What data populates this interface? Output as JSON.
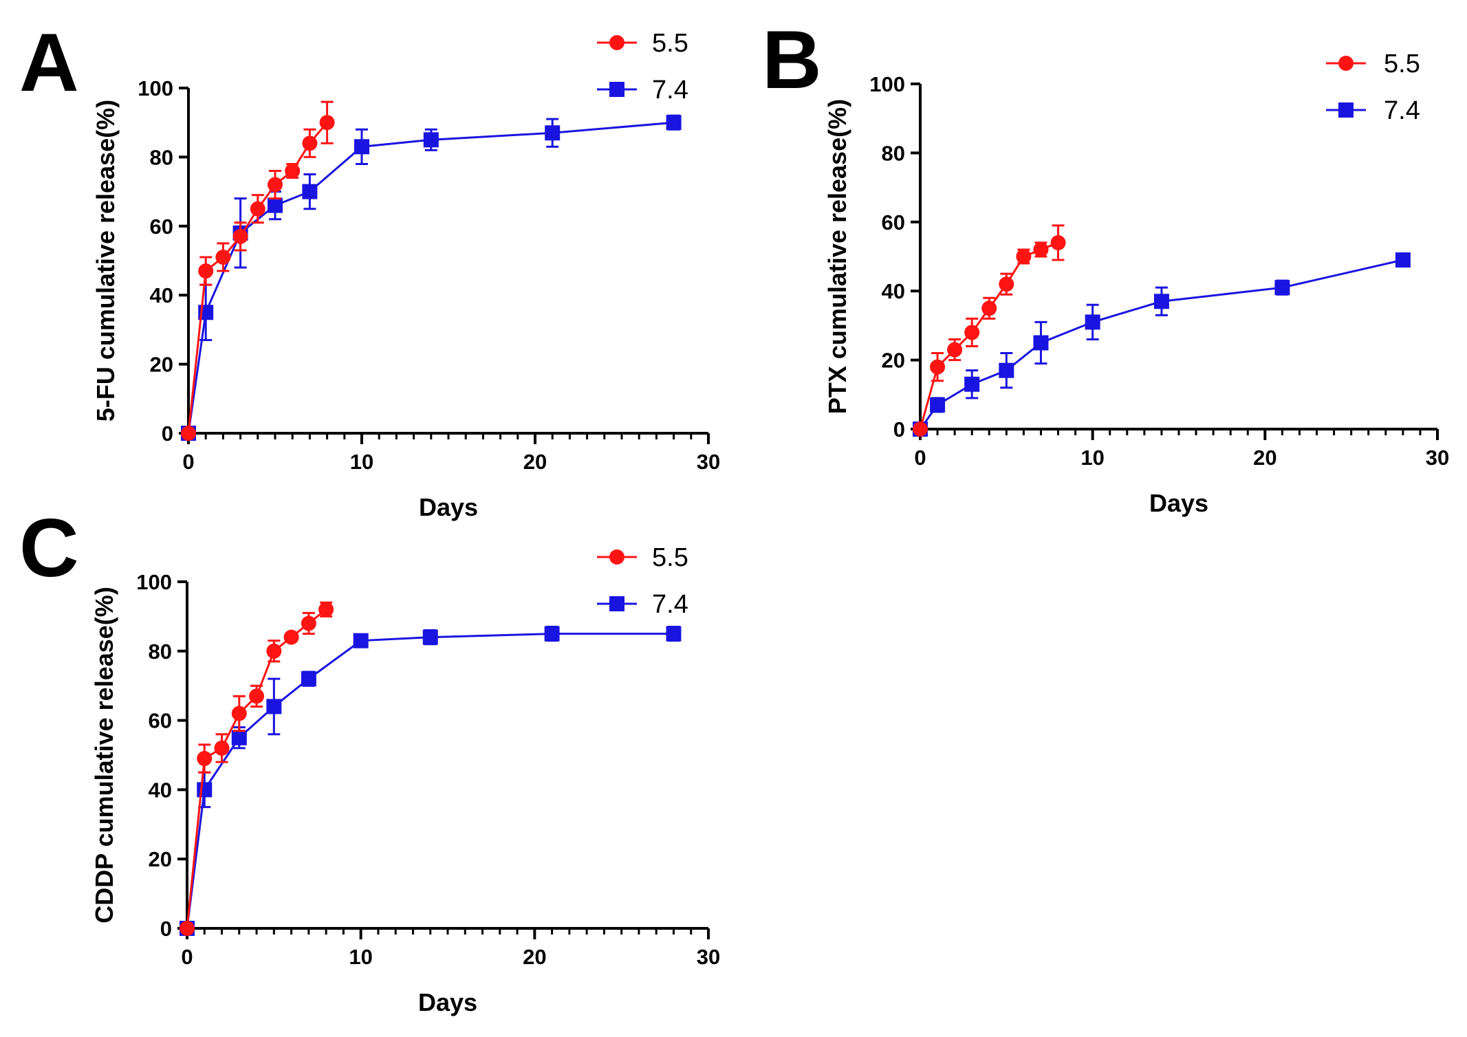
{
  "series_styles": [
    {
      "name": "5.5",
      "color": "#ff1414",
      "marker": "circle"
    },
    {
      "name": "7.4",
      "color": "#1a14e0",
      "marker": "square"
    }
  ],
  "chart_data": [
    {
      "panel": "A",
      "type": "line",
      "xlabel": "Days",
      "ylabel": "5-FU cumulative release(%)",
      "xlim": [
        0,
        30
      ],
      "ylim": [
        0,
        100
      ],
      "xticks": [
        0,
        10,
        20,
        30
      ],
      "yticks": [
        0,
        20,
        40,
        60,
        80,
        100
      ],
      "legend": "top-right",
      "series": [
        {
          "name": "5.5",
          "x": [
            0,
            1,
            2,
            3,
            4,
            5,
            6,
            7,
            8
          ],
          "y": [
            0,
            47,
            51,
            57,
            65,
            72,
            76,
            84,
            90
          ],
          "err": [
            0,
            4,
            4,
            4,
            4,
            4,
            2,
            4,
            6
          ]
        },
        {
          "name": "7.4",
          "x": [
            0,
            1,
            3,
            5,
            7,
            10,
            14,
            21,
            28
          ],
          "y": [
            0,
            35,
            58,
            66,
            70,
            83,
            85,
            87,
            90
          ],
          "err": [
            0,
            8,
            10,
            4,
            5,
            5,
            3,
            4,
            2
          ]
        }
      ]
    },
    {
      "panel": "B",
      "type": "line",
      "xlabel": "Days",
      "ylabel": "PTX cumulative release(%)",
      "xlim": [
        0,
        30
      ],
      "ylim": [
        0,
        100
      ],
      "xticks": [
        0,
        10,
        20,
        30
      ],
      "yticks": [
        0,
        20,
        40,
        60,
        80,
        100
      ],
      "legend": "top-right",
      "series": [
        {
          "name": "5.5",
          "x": [
            0,
            1,
            2,
            3,
            4,
            5,
            6,
            7,
            8
          ],
          "y": [
            0,
            18,
            23,
            28,
            35,
            42,
            50,
            52,
            54
          ],
          "err": [
            0,
            4,
            3,
            4,
            3,
            3,
            2,
            2,
            5
          ]
        },
        {
          "name": "7.4",
          "x": [
            0,
            1,
            3,
            5,
            7,
            10,
            14,
            21,
            28
          ],
          "y": [
            0,
            7,
            13,
            17,
            25,
            31,
            37,
            41,
            49
          ],
          "err": [
            0,
            2,
            4,
            5,
            6,
            5,
            4,
            2,
            1
          ]
        }
      ]
    },
    {
      "panel": "C",
      "type": "line",
      "xlabel": "Days",
      "ylabel": "CDDP cumulative release(%)",
      "xlim": [
        0,
        30
      ],
      "ylim": [
        0,
        100
      ],
      "xticks": [
        0,
        10,
        20,
        30
      ],
      "yticks": [
        0,
        20,
        40,
        60,
        80,
        100
      ],
      "legend": "top-right",
      "series": [
        {
          "name": "5.5",
          "x": [
            0,
            1,
            2,
            3,
            4,
            5,
            6,
            7,
            8
          ],
          "y": [
            0,
            49,
            52,
            62,
            67,
            80,
            84,
            88,
            92
          ],
          "err": [
            0,
            4,
            4,
            5,
            3,
            3,
            1,
            3,
            2
          ]
        },
        {
          "name": "7.4",
          "x": [
            0,
            1,
            3,
            5,
            7,
            10,
            14,
            21,
            28
          ],
          "y": [
            0,
            40,
            55,
            64,
            72,
            83,
            84,
            85,
            85
          ],
          "err": [
            0,
            5,
            3,
            8,
            2,
            1,
            2,
            2,
            2
          ]
        }
      ]
    }
  ]
}
